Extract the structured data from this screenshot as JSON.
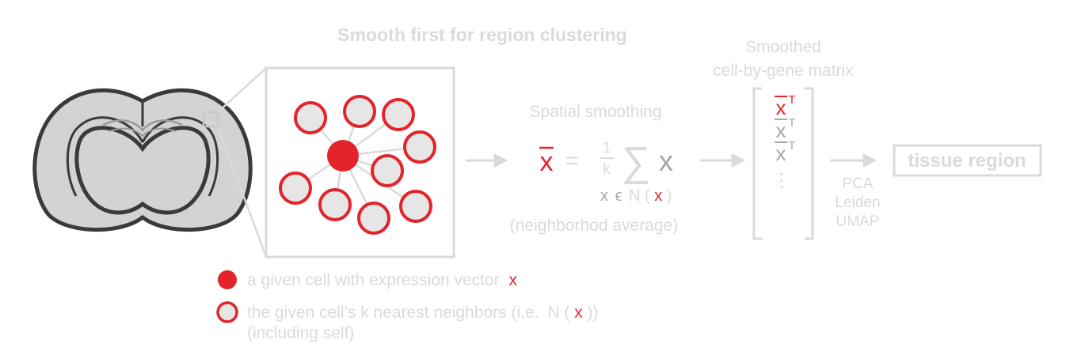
{
  "title": "Smooth first for region clustering",
  "smoothing": {
    "label": "Spatial smoothing",
    "xbar": "x",
    "equals": "=",
    "frac_num": "1",
    "frac_den": "k",
    "sum_sign": "∑",
    "summand": "x",
    "sub_x": "x",
    "sub_in": "ϵ",
    "sub_N": "N",
    "sub_open": "(",
    "sub_arg": "x",
    "sub_close": ")",
    "caption": "(neighborhod average)"
  },
  "matrix": {
    "title_line1": "Smoothed",
    "title_line2": "cell-by-gene matrix",
    "rows": [
      {
        "base": "x",
        "sup": "T",
        "highlight": true
      },
      {
        "base": "x",
        "sup": "T",
        "highlight": false
      },
      {
        "base": "x",
        "sup": "T",
        "highlight": false
      }
    ],
    "ellipsis": "⋮"
  },
  "pipeline": {
    "steps": [
      "PCA",
      "Leiden",
      "UMAP"
    ],
    "result": "tissue region"
  },
  "legend": {
    "item1_text": "a given cell with expression vector",
    "item1_var": "x",
    "item2_text": "the given cell’s k nearest neighbors (i.e.",
    "item2_N": "N",
    "item2_open": "(",
    "item2_var": "x",
    "item2_close": "))",
    "item2_line2": "(including self)"
  },
  "colors": {
    "accent_red": "#e3242b",
    "light_gray": "#dadada",
    "mid_gray": "#a6a6a6",
    "brain_fill": "#d3d3d3",
    "brain_outline": "#3a3a3a"
  }
}
